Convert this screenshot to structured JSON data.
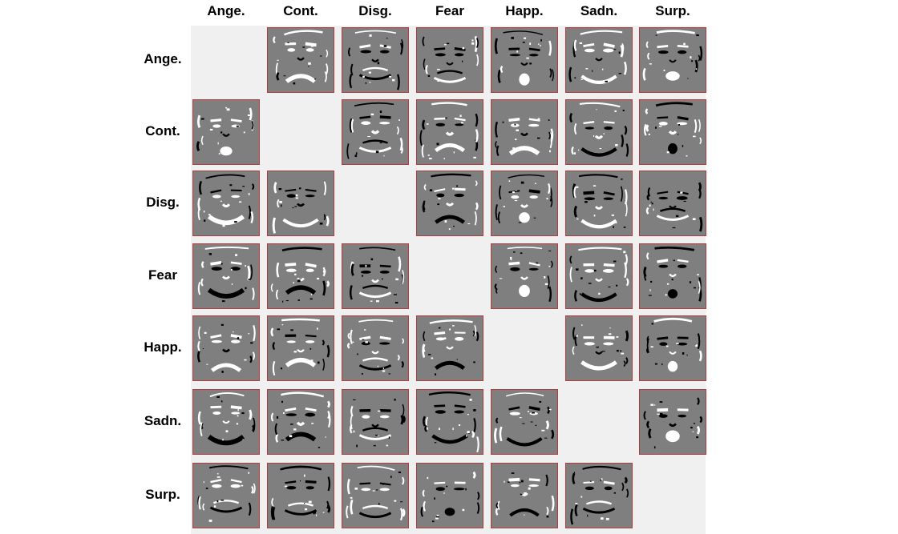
{
  "figure": {
    "column_labels": [
      "Ange.",
      "Cont.",
      "Disg.",
      "Fear",
      "Happ.",
      "Sadn.",
      "Surp."
    ],
    "row_labels": [
      "Ange.",
      "Cont.",
      "Disg.",
      "Fear",
      "Happ.",
      "Sadn.",
      "Surp."
    ],
    "cell_image": "difference-face-map",
    "diagonal": "empty",
    "colors": {
      "face_background": "#7f7f7f",
      "cell_border": "#b33b3b",
      "grid_background": "#f0f0f0",
      "positive_pixels": "#ffffff",
      "negative_pixels": "#000000"
    }
  }
}
